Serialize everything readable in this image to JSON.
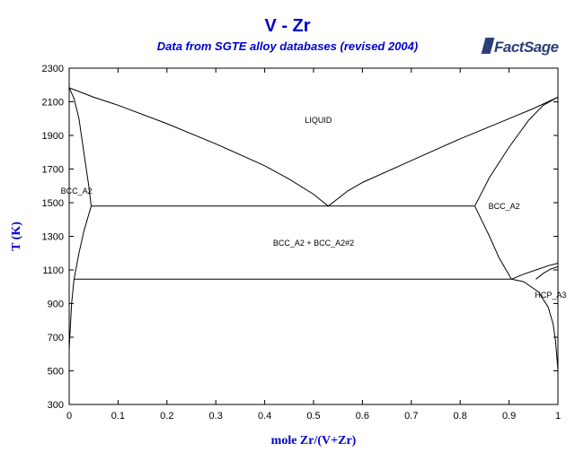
{
  "header": {
    "title": "V - Zr",
    "subtitle": "Data from SGTE alloy databases (revised 2004)",
    "logo_main": "FactSage",
    "logo_sup": "™"
  },
  "chart_data": {
    "type": "line",
    "title": "V - Zr",
    "subtitle": "Data from SGTE alloy databases (revised 2004)",
    "xlabel": "mole Zr/(V+Zr)",
    "ylabel": "T (K)",
    "xlim": [
      0,
      1
    ],
    "ylim": [
      300,
      2300
    ],
    "xticks": [
      0,
      0.1,
      0.2,
      0.3,
      0.4,
      0.5,
      0.6,
      0.7,
      0.8,
      0.9,
      1
    ],
    "yticks": [
      300,
      500,
      700,
      900,
      1100,
      1300,
      1500,
      1700,
      1900,
      2100,
      2300
    ],
    "grid": false,
    "series": [
      {
        "id": "liquidus-left",
        "x": [
          0,
          0.05,
          0.1,
          0.2,
          0.3,
          0.4,
          0.45,
          0.5,
          0.53
        ],
        "y": [
          2183,
          2127,
          2080,
          1970,
          1850,
          1720,
          1640,
          1550,
          1480
        ]
      },
      {
        "id": "liquidus-right",
        "x": [
          0.53,
          0.57,
          0.6,
          0.7,
          0.8,
          0.9,
          0.95,
          1.0
        ],
        "y": [
          1480,
          1570,
          1620,
          1750,
          1880,
          2000,
          2060,
          2128
        ]
      },
      {
        "id": "solidus-left",
        "x": [
          0,
          0.01,
          0.02,
          0.03,
          0.04,
          0.045
        ],
        "y": [
          2183,
          2120,
          2000,
          1800,
          1600,
          1480
        ]
      },
      {
        "id": "solidus-right",
        "x": [
          0.83,
          0.86,
          0.9,
          0.94,
          0.97,
          1.0
        ],
        "y": [
          1480,
          1650,
          1830,
          1990,
          2080,
          2128
        ]
      },
      {
        "id": "eutectic-isotherm",
        "x": [
          0.045,
          0.83
        ],
        "y": [
          1480,
          1480
        ]
      },
      {
        "id": "bcc-solvus-left",
        "x": [
          0.045,
          0.03,
          0.02,
          0.01,
          0.005,
          0
        ],
        "y": [
          1480,
          1330,
          1200,
          1045,
          900,
          630
        ]
      },
      {
        "id": "bcc-solvus-right",
        "x": [
          0.83,
          0.86,
          0.88,
          0.905
        ],
        "y": [
          1480,
          1300,
          1170,
          1045
        ]
      },
      {
        "id": "eutectoid-isotherm",
        "x": [
          0.01,
          0.905
        ],
        "y": [
          1045,
          1045
        ]
      },
      {
        "id": "bcc-hcp-upper",
        "x": [
          0.905,
          0.93,
          0.96,
          0.98,
          1.0
        ],
        "y": [
          1045,
          1075,
          1105,
          1125,
          1140
        ]
      },
      {
        "id": "bcc-hcp-lower",
        "x": [
          0.955,
          0.97,
          0.985,
          1.0
        ],
        "y": [
          1045,
          1080,
          1105,
          1120
        ]
      },
      {
        "id": "hcp-solvus",
        "x": [
          0.905,
          0.93,
          0.96,
          0.98,
          0.99,
          0.995,
          1.0
        ],
        "y": [
          1045,
          1030,
          970,
          880,
          780,
          680,
          505
        ]
      }
    ],
    "annotations": [
      {
        "text": "LIQUID",
        "x": 0.51,
        "y": 1990
      },
      {
        "text": "BCC_A2",
        "x": 0.015,
        "y": 1570
      },
      {
        "text": "BCC_A2",
        "x": 0.89,
        "y": 1480
      },
      {
        "text": "BCC_A2 + BCC_A2#2",
        "x": 0.5,
        "y": 1260
      },
      {
        "text": "HCP_A3",
        "x": 0.985,
        "y": 950
      }
    ]
  }
}
